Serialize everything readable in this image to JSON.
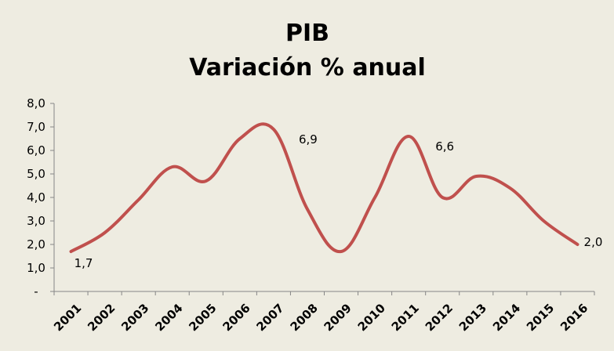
{
  "chart_data": {
    "type": "line",
    "title": "PIB",
    "subtitle": "Variación % anual",
    "xlabel": "",
    "ylabel": "",
    "x": [
      "2001",
      "2002",
      "2003",
      "2004",
      "2005",
      "2006",
      "2007",
      "2008",
      "2009",
      "2010",
      "2011",
      "2012",
      "2013",
      "2014",
      "2015",
      "2016"
    ],
    "series": [
      {
        "values": [
          1.7,
          2.5,
          3.9,
          5.3,
          4.7,
          6.5,
          6.9,
          3.5,
          1.7,
          4.0,
          6.6,
          4.0,
          4.9,
          4.4,
          3.0,
          2.0
        ]
      }
    ],
    "y_ticks": [
      "-",
      "1,0",
      "2,0",
      "3,0",
      "4,0",
      "5,0",
      "6,0",
      "7,0",
      "8,0"
    ],
    "ylim": [
      0,
      8
    ],
    "grid": false,
    "legend": "none",
    "line_color": "#c0504d",
    "background_color": "#eeece1",
    "data_labels": [
      {
        "index": 0,
        "text": "1,7"
      },
      {
        "index": 6,
        "text": "6,9"
      },
      {
        "index": 10,
        "text": "6,6"
      },
      {
        "index": 15,
        "text": "2,0"
      }
    ]
  }
}
